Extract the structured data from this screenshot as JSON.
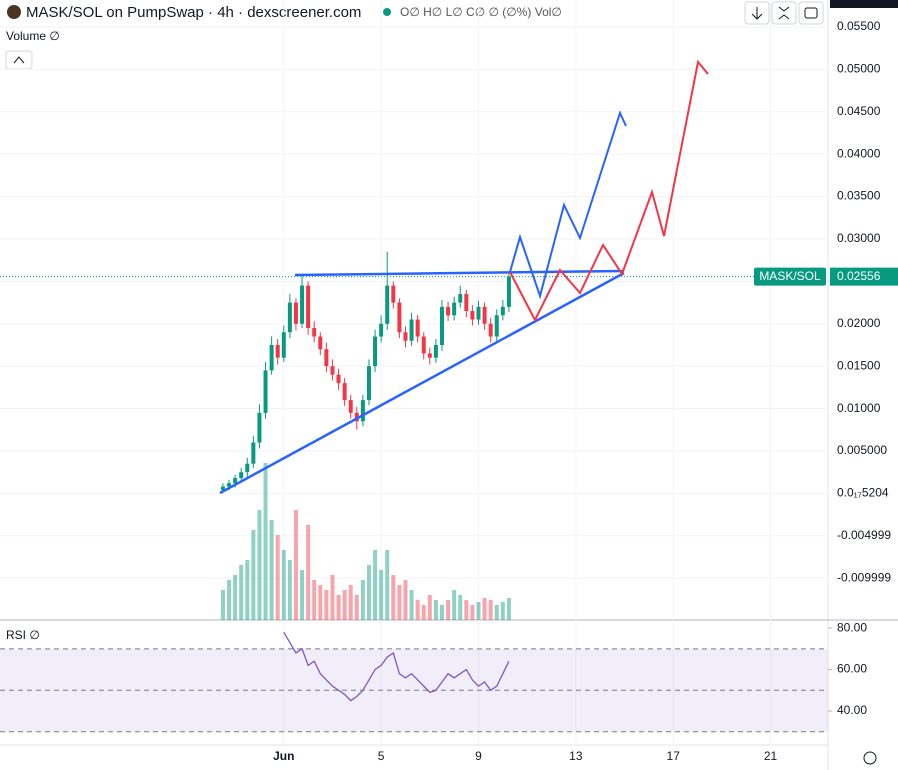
{
  "chart_data": [
    {
      "type": "candlestick",
      "title": "MASK/SOL on PumpSwap · 4h · dexscreener.com",
      "ohlc_legend": "O∅ H∅ L∅ C∅ ∅ (∅%) Vol∅",
      "volume_label": "Volume ∅",
      "symbol_label": "MASK/SOL",
      "x": [
        -1.5,
        -1.25,
        -1,
        -0.75,
        -0.5,
        -0.25,
        0,
        0.25,
        0.5,
        0.75,
        1,
        1.25,
        1.5,
        1.75,
        2,
        2.25,
        2.5,
        2.75,
        3,
        3.25,
        3.5,
        3.75,
        4,
        4.25,
        4.5,
        4.75,
        5,
        5.25,
        5.5,
        5.75,
        6,
        6.25,
        6.5,
        6.75,
        7,
        7.25,
        7.5,
        7.75,
        8,
        8.25,
        8.5,
        8.75,
        9,
        9.25,
        9.5,
        9.75,
        10,
        10.25
      ],
      "open": [
        0.0004,
        0.0008,
        0.0012,
        0.0018,
        0.0025,
        0.0035,
        0.006,
        0.0095,
        0.0145,
        0.0175,
        0.016,
        0.019,
        0.0225,
        0.02,
        0.0245,
        0.0195,
        0.0185,
        0.017,
        0.015,
        0.014,
        0.013,
        0.011,
        0.0095,
        0.0085,
        0.011,
        0.015,
        0.0185,
        0.02,
        0.0245,
        0.0225,
        0.019,
        0.018,
        0.0205,
        0.0185,
        0.0165,
        0.016,
        0.0175,
        0.022,
        0.021,
        0.0225,
        0.0235,
        0.0215,
        0.0205,
        0.022,
        0.02,
        0.0185,
        0.021,
        0.022
      ],
      "high": [
        0.0012,
        0.0016,
        0.0022,
        0.003,
        0.0042,
        0.0068,
        0.0105,
        0.0155,
        0.0185,
        0.0182,
        0.0198,
        0.0235,
        0.023,
        0.0256,
        0.025,
        0.0203,
        0.019,
        0.0178,
        0.0158,
        0.0147,
        0.0136,
        0.0116,
        0.0102,
        0.0116,
        0.0158,
        0.0193,
        0.021,
        0.0285,
        0.025,
        0.023,
        0.0197,
        0.0213,
        0.021,
        0.019,
        0.0172,
        0.0182,
        0.0228,
        0.0226,
        0.0232,
        0.0245,
        0.024,
        0.0222,
        0.0227,
        0.0225,
        0.0207,
        0.0217,
        0.0228,
        0.0262
      ],
      "low": [
        0.0001,
        0.0004,
        0.0007,
        0.0013,
        0.0019,
        0.003,
        0.0053,
        0.0088,
        0.014,
        0.0152,
        0.0155,
        0.0183,
        0.0192,
        0.0195,
        0.0187,
        0.0178,
        0.0163,
        0.0143,
        0.0133,
        0.0122,
        0.0103,
        0.0088,
        0.0075,
        0.0079,
        0.0104,
        0.0143,
        0.0178,
        0.0193,
        0.0218,
        0.0183,
        0.0172,
        0.0174,
        0.0178,
        0.0158,
        0.0152,
        0.0154,
        0.0168,
        0.0203,
        0.0204,
        0.0219,
        0.0208,
        0.0198,
        0.0199,
        0.0193,
        0.0178,
        0.0179,
        0.0204,
        0.0214
      ],
      "close": [
        0.0008,
        0.0012,
        0.0018,
        0.0025,
        0.0035,
        0.006,
        0.0095,
        0.0145,
        0.0175,
        0.016,
        0.019,
        0.0225,
        0.02,
        0.0245,
        0.0195,
        0.0185,
        0.017,
        0.015,
        0.014,
        0.013,
        0.011,
        0.0095,
        0.0085,
        0.011,
        0.015,
        0.0185,
        0.02,
        0.0245,
        0.0225,
        0.019,
        0.018,
        0.0205,
        0.0185,
        0.0165,
        0.016,
        0.0175,
        0.022,
        0.021,
        0.0225,
        0.0235,
        0.0215,
        0.0205,
        0.022,
        0.02,
        0.0185,
        0.021,
        0.022,
        0.02556
      ],
      "volume": [
        30,
        40,
        45,
        55,
        60,
        90,
        110,
        157,
        100,
        85,
        70,
        60,
        110,
        50,
        95,
        40,
        35,
        30,
        45,
        25,
        30,
        35,
        25,
        40,
        55,
        70,
        50,
        70,
        45,
        35,
        40,
        30,
        20,
        15,
        25,
        20,
        15,
        20,
        30,
        25,
        20,
        15,
        18,
        22,
        20,
        15,
        18,
        22
      ],
      "volume_lim": [
        0,
        400
      ],
      "up_color": "#089981",
      "down_color": "#f23645",
      "xlim": [
        -10.66,
        23.36
      ],
      "xticks": [
        {
          "value": 1,
          "label": "Jun"
        },
        5,
        9,
        13,
        17,
        21
      ],
      "ylim": [
        -0.01493,
        0.05818
      ],
      "yticks": [
        {
          "value": 0.055,
          "label": "0.05500"
        },
        {
          "value": 0.05,
          "label": "0.05000"
        },
        {
          "value": 0.045,
          "label": "0.04500"
        },
        {
          "value": 0.04,
          "label": "0.04000"
        },
        {
          "value": 0.035,
          "label": "0.03500"
        },
        {
          "value": 0.03,
          "label": "0.03000"
        },
        {
          "value": 0.025,
          "label": "0.02500"
        },
        {
          "value": 0.02,
          "label": "0.02000"
        },
        {
          "value": 0.015,
          "label": "0.01500"
        },
        {
          "value": 0.01,
          "label": "0.01000"
        },
        {
          "value": 0.005,
          "label": "0.005000"
        },
        {
          "value": 5.204e-18,
          "label": "0.0₁₇5204"
        },
        -0.004999,
        -0.009999
      ]
    },
    {
      "type": "line",
      "title": "RSI ∅",
      "x": [
        1,
        1.25,
        1.5,
        1.75,
        2,
        2.25,
        2.5,
        2.75,
        3,
        3.25,
        3.5,
        3.75,
        4,
        4.25,
        4.5,
        4.75,
        5,
        5.25,
        5.5,
        5.75,
        6,
        6.25,
        6.5,
        6.75,
        7,
        7.25,
        7.5,
        7.75,
        8,
        8.25,
        8.5,
        8.75,
        9,
        9.25,
        9.5,
        9.75,
        10,
        10.25
      ],
      "values": [
        78,
        73,
        68,
        70,
        62,
        64,
        58,
        55,
        52,
        50,
        48,
        45,
        47,
        50,
        55,
        60,
        62,
        66,
        68,
        58,
        56,
        58,
        55,
        52,
        49,
        50,
        54,
        58,
        56,
        58,
        60,
        55,
        52,
        54,
        50,
        52,
        58,
        64
      ],
      "color": "#7e57c2",
      "bands": [
        70,
        50,
        30
      ],
      "ylim": [
        23.6,
        83.9
      ],
      "yticks": [
        {
          "value": 80,
          "label": "80.00"
        },
        {
          "value": 60,
          "label": "60.00"
        },
        {
          "value": 40,
          "label": "40.00"
        }
      ]
    }
  ]
}
